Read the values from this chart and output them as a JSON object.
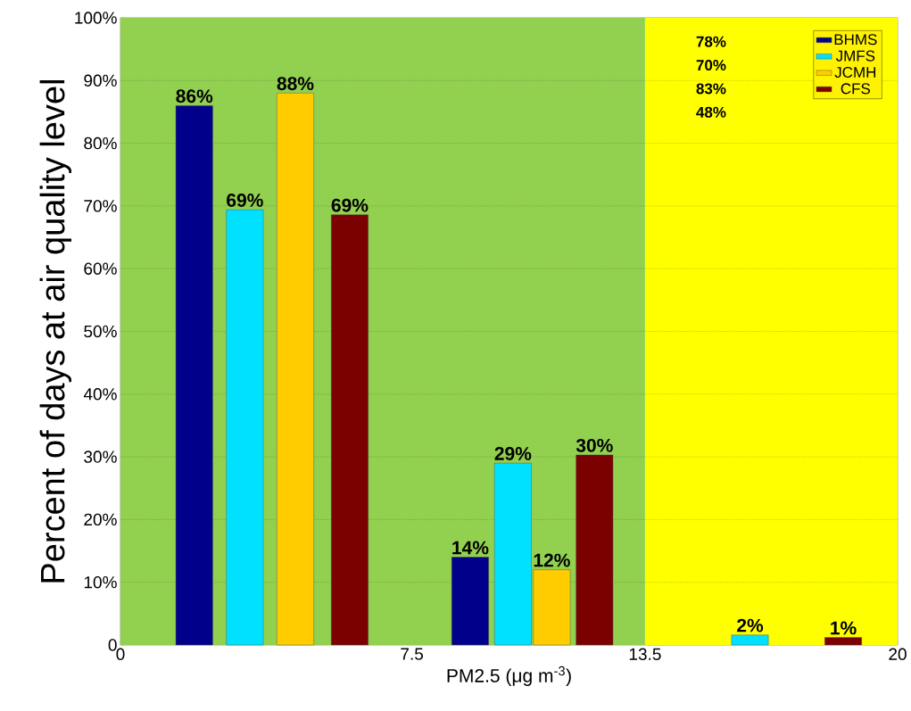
{
  "chart_data": {
    "type": "bar",
    "xlabel": "PM2.5 (μg m$^{-3}$)",
    "ylabel": "Percent of days at air quality level",
    "xlim": [
      0,
      20
    ],
    "xticks": [
      0,
      7.5,
      13.5,
      20
    ],
    "ylim": [
      0,
      100
    ],
    "yticks": [
      {
        "value": 0,
        "label": "0"
      },
      {
        "value": 10,
        "label": "10%"
      },
      {
        "value": 20,
        "label": "20%"
      },
      {
        "value": 30,
        "label": "30%"
      },
      {
        "value": 40,
        "label": "40%"
      },
      {
        "value": 50,
        "label": "50%"
      },
      {
        "value": 60,
        "label": "60%"
      },
      {
        "value": 70,
        "label": "70%"
      },
      {
        "value": 80,
        "label": "80%"
      },
      {
        "value": 90,
        "label": "90%"
      },
      {
        "value": 100,
        "label": "100%"
      }
    ],
    "series": [
      {
        "name": "BHMS",
        "color": "#00008b",
        "x": [
          1.9,
          9.0,
          null
        ],
        "values": [
          86,
          14,
          null
        ],
        "value_labels": [
          "86%",
          "14%",
          null
        ]
      },
      {
        "name": "JMFS",
        "color": "#00e0ff",
        "x": [
          3.2,
          10.1,
          16.2
        ],
        "values": [
          69.4,
          29,
          1.6
        ],
        "value_labels": [
          "69%",
          "29%",
          "2%"
        ]
      },
      {
        "name": "JCMH",
        "color": "#ffcc00",
        "x": [
          4.5,
          11.1,
          null
        ],
        "values": [
          88,
          12,
          null
        ],
        "value_labels": [
          "88%",
          "12%",
          null
        ]
      },
      {
        "name": "CFS",
        "color": "#7b0000",
        "x": [
          5.9,
          12.2,
          18.6
        ],
        "values": [
          68.6,
          30.3,
          1.2
        ],
        "value_labels": [
          "69%",
          "30%",
          "1%"
        ]
      }
    ],
    "bands": [
      {
        "axis": "x",
        "from": 0,
        "to": 13.5,
        "color": "#92d050"
      },
      {
        "axis": "x",
        "from": 13.5,
        "to": 20,
        "color": "#ffff00"
      }
    ],
    "annotations": [
      "78%",
      "70%",
      "83%",
      "48%"
    ],
    "grid": "y",
    "legend": "top right"
  }
}
